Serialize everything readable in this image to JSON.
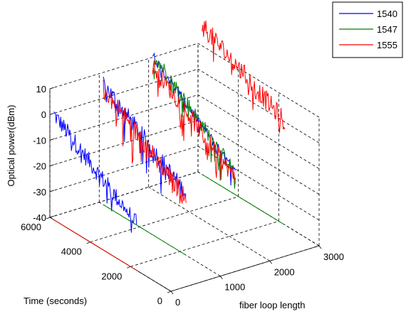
{
  "chart_data": {
    "type": "line",
    "projection": "3d",
    "title": "",
    "xlabel": "fiber loop length",
    "ylabel": "Time (seconds)",
    "zlabel": "Optical power(dBm)",
    "xlim": [
      0,
      3000
    ],
    "ylim": [
      0,
      6000
    ],
    "zlim": [
      -40,
      10
    ],
    "xticks": [
      "0",
      "1000",
      "2000",
      "3000"
    ],
    "yticks": [
      "0",
      "2000",
      "4000",
      "6000"
    ],
    "zticks": [
      "-40",
      "-30",
      "-20",
      "-10",
      "0",
      "10"
    ],
    "grid": true,
    "legend": {
      "position": "top-right",
      "entries": [
        "1540",
        "1547",
        "1555"
      ]
    },
    "series": [
      {
        "name": "1540",
        "color": "#0000ff",
        "description_traces": [
          {
            "x": 0,
            "y_start": 5800,
            "y_end": 1700,
            "z_start": 1,
            "z_end": -22,
            "noise": 7
          },
          {
            "x": 1000,
            "y_start": 5800,
            "y_end": 1700,
            "z_start": 7,
            "z_end": -16,
            "noise": 7
          },
          {
            "x": 2000,
            "y_start": 5800,
            "y_end": 1700,
            "z_start": 12,
            "z_end": -14,
            "noise": 4
          }
        ]
      },
      {
        "name": "1547",
        "color": "#008000",
        "traces": [
          {
            "x": 0,
            "y_start": 5800,
            "y_end": 1700,
            "z_start": -40,
            "z_end": -40,
            "noise": 0
          },
          {
            "x": 1000,
            "y_start": 5800,
            "y_end": 1700,
            "z_start": -40,
            "z_end": -40,
            "noise": 0
          },
          {
            "x": 2000,
            "y_start": 5800,
            "y_end": 1700,
            "z_start": 13,
            "z_end": -14,
            "noise": 6
          },
          {
            "x": 3000,
            "y_start": 5800,
            "y_end": 1700,
            "z_start": -40,
            "z_end": -40,
            "noise": 0
          }
        ]
      },
      {
        "name": "1555",
        "color": "#ff0000",
        "traces": [
          {
            "x": 0,
            "y_start": 5800,
            "y_end": 1700,
            "z_start": -40,
            "z_end": -40,
            "noise": 0
          },
          {
            "x": 1000,
            "y_start": 5800,
            "y_end": 1700,
            "z_start": 5,
            "z_end": -18,
            "noise": 8
          },
          {
            "x": 2000,
            "y_start": 5800,
            "y_end": 1700,
            "z_start": 8,
            "z_end": -16,
            "noise": 7
          },
          {
            "x": 3000,
            "y_start": 5800,
            "y_end": 1700,
            "z_start": 18,
            "z_end": 0,
            "noise": 8
          }
        ]
      }
    ]
  }
}
